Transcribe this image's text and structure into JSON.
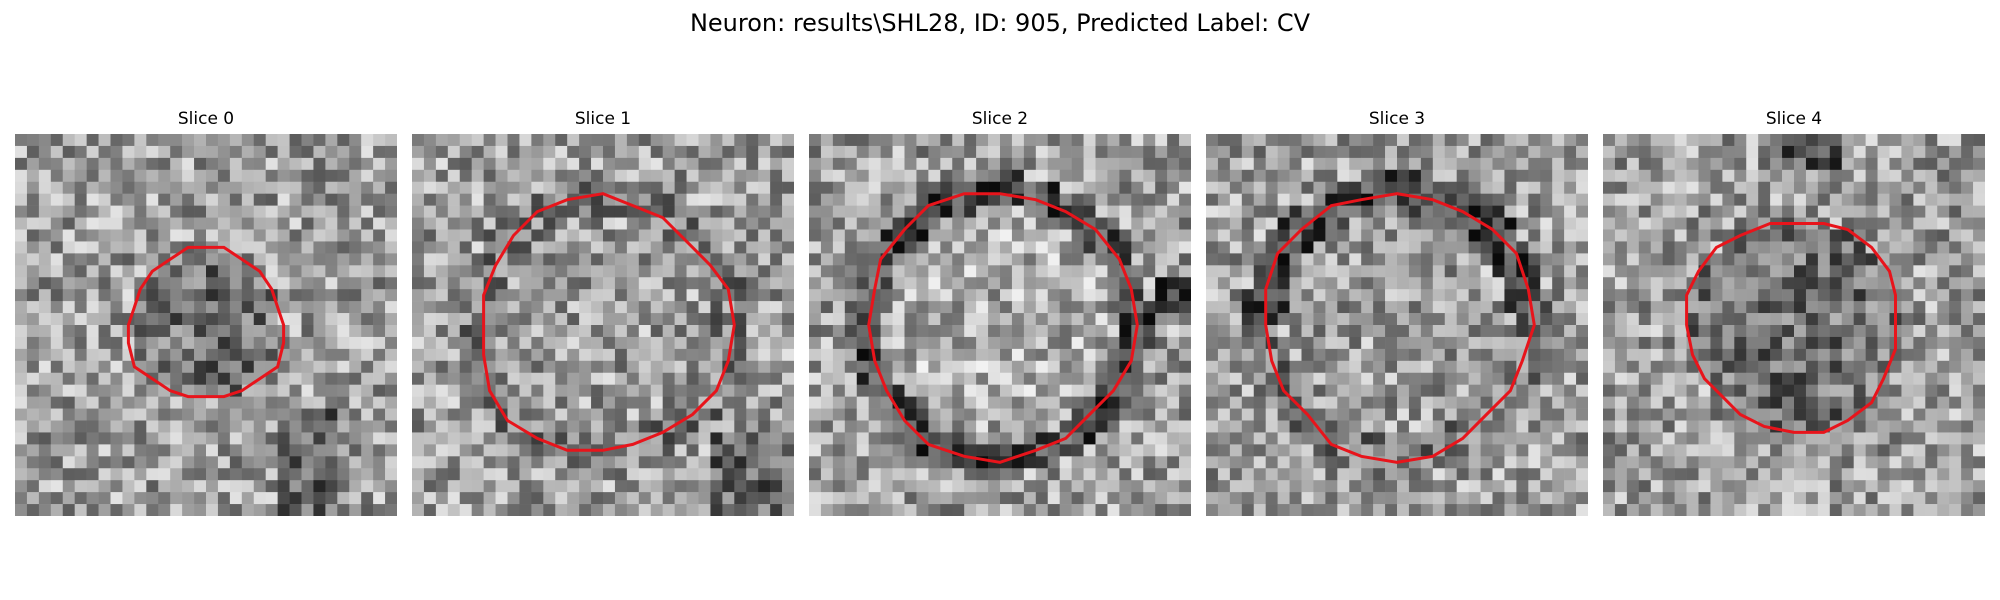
{
  "figure": {
    "title": "Neuron: results\\SHL28, ID: 905, Predicted Label: CV"
  },
  "panels": [
    {
      "title": "Slice 0",
      "seed": 11,
      "ring": "filled",
      "radius": 0.2,
      "dark_spots": "left"
    },
    {
      "title": "Slice 1",
      "seed": 23,
      "ring": "faint",
      "radius": 0.33,
      "dark_spots": "bottom-right"
    },
    {
      "title": "Slice 2",
      "seed": 37,
      "ring": "dark",
      "radius": 0.35,
      "dark_spots": "right"
    },
    {
      "title": "Slice 3",
      "seed": 53,
      "ring": "dark-top",
      "radius": 0.35,
      "dark_spots": "none"
    },
    {
      "title": "Slice 4",
      "seed": 71,
      "ring": "filled",
      "radius": 0.28,
      "dark_spots": "top"
    }
  ],
  "image": {
    "grid": 32,
    "colormap": "grayscale",
    "contour_color": "#e8141b"
  }
}
